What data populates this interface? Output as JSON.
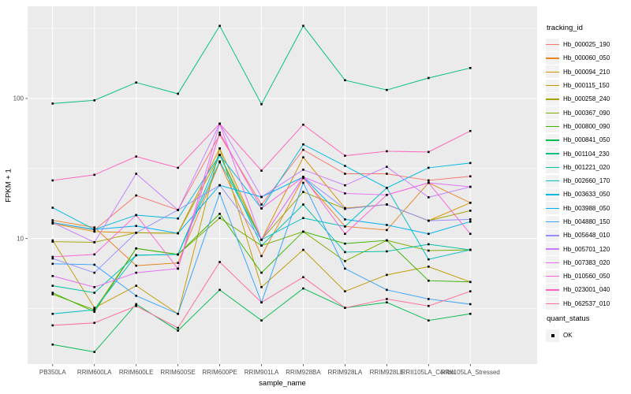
{
  "figure": {
    "background": "#FFFFFF",
    "panel_background": "#EBEBEB",
    "gridline_color": "#FFFFFF",
    "tick_text_color": "#4D4D4D",
    "tick_mark_color": "#333333",
    "marker_color": "#000000"
  },
  "chart_data": {
    "type": "line",
    "title": "",
    "xlabel": "sample_name",
    "ylabel": "FPKM + 1",
    "y_scale": "log10",
    "ylim": [
      1.27,
      455
    ],
    "y_major_ticks": [
      {
        "label": "100",
        "value": 100
      },
      {
        "label": "10",
        "value": 10
      }
    ],
    "y_minor_gridlines": [
      3.1623,
      31.623,
      316.23
    ],
    "grid": true,
    "legend_position": "right",
    "legend_title": "tracking_id",
    "marker": {
      "shape": "square",
      "color": "#000000",
      "size": 2.6
    },
    "categories": [
      "PB350LA",
      "RRIM600LA",
      "RRIM600LE",
      "RRIM600SE",
      "RRIM600PE",
      "RRIM901LA",
      "RRIM928BA",
      "RRIM928LA",
      "RRIM928LE",
      "RRII105LA_Control",
      "RRII105LA_Stressed"
    ],
    "series": [
      {
        "name": "Hb_000025_190",
        "color": "#F8766D",
        "values": [
          13,
          11.5,
          20.3,
          16,
          55,
          17.5,
          43,
          29,
          29,
          26,
          27.8
        ]
      },
      {
        "name": "Hb_000060_050",
        "color": "#E88526",
        "values": [
          13.5,
          12,
          6.4,
          6.7,
          35,
          7.5,
          27,
          12.2,
          11.5,
          25,
          18
        ]
      },
      {
        "name": "Hb_000094_210",
        "color": "#D89000",
        "values": [
          12.8,
          11.2,
          11,
          10.9,
          44,
          9.8,
          38,
          16.5,
          17.5,
          13.4,
          18
        ]
      },
      {
        "name": "Hb_000115_150",
        "color": "#C09B00",
        "values": [
          9.7,
          3.2,
          4.6,
          2.9,
          44,
          4.5,
          8.3,
          4.2,
          5.5,
          6.3,
          4.9
        ]
      },
      {
        "name": "Hb_000258_240",
        "color": "#A3A500",
        "values": [
          9.5,
          9.4,
          11,
          10.9,
          39.5,
          9.8,
          21.5,
          16.3,
          17.5,
          13.4,
          15.8
        ]
      },
      {
        "name": "Hb_000367_090",
        "color": "#7CAE00",
        "values": [
          4.0,
          3.1,
          8.5,
          7.7,
          14,
          8.9,
          11.2,
          6.9,
          9.7,
          8.2,
          8.3
        ]
      },
      {
        "name": "Hb_000800_090",
        "color": "#39B600",
        "values": [
          4.1,
          3.0,
          8.5,
          7.7,
          15,
          5.7,
          11.2,
          9.2,
          9.7,
          5.0,
          4.9
        ]
      },
      {
        "name": "Hb_000841_050",
        "color": "#00BB4E",
        "values": [
          1.75,
          1.55,
          3.4,
          2.2,
          4.3,
          2.6,
          4.4,
          3.2,
          3.5,
          2.6,
          2.9
        ]
      },
      {
        "name": "Hb_001104_230",
        "color": "#00BF7D",
        "values": [
          92,
          97,
          130,
          108,
          330,
          91,
          330,
          135,
          115,
          140,
          165
        ]
      },
      {
        "name": "Hb_001221_020",
        "color": "#00C1A3",
        "values": [
          4.6,
          4.1,
          7.6,
          7.7,
          39.5,
          8.9,
          17.5,
          8.0,
          8.1,
          9.1,
          8.3
        ]
      },
      {
        "name": "Hb_002660_170",
        "color": "#00BFC4",
        "values": [
          2.9,
          3.1,
          7.6,
          7.7,
          35.5,
          9.8,
          14,
          12.2,
          23,
          7.1,
          8.3
        ]
      },
      {
        "name": "Hb_003633_050",
        "color": "#00BAE0",
        "values": [
          16.6,
          11.6,
          14.7,
          13.9,
          39.5,
          16.4,
          47,
          33,
          23,
          32,
          34.6
        ]
      },
      {
        "name": "Hb_003988_050",
        "color": "#00B0F6",
        "values": [
          13,
          11.6,
          12.3,
          10.9,
          24,
          19.8,
          27.5,
          13.7,
          12.5,
          10.8,
          13.2
        ]
      },
      {
        "name": "Hb_004880_150",
        "color": "#35A2FF",
        "values": [
          6.6,
          6.5,
          3.9,
          2.9,
          21,
          3.5,
          25,
          6.1,
          4.3,
          3.7,
          3.4
        ]
      },
      {
        "name": "Hb_005648_010",
        "color": "#9590FF",
        "values": [
          7.2,
          5.7,
          11,
          16,
          24,
          9.8,
          27.5,
          16.3,
          17.5,
          13.4,
          13.7
        ]
      },
      {
        "name": "Hb_005701_120",
        "color": "#C77CFF",
        "values": [
          13,
          9.4,
          29,
          16,
          66,
          19.8,
          31,
          24,
          32.5,
          19.7,
          23.4
        ]
      },
      {
        "name": "Hb_007383_020",
        "color": "#E76BF3",
        "values": [
          5.4,
          4.5,
          5.7,
          6.1,
          66,
          9.8,
          27.5,
          21,
          20.5,
          25,
          23.4
        ]
      },
      {
        "name": "Hb_010560_050",
        "color": "#FA62DB",
        "values": [
          7.4,
          7.7,
          14.7,
          6.1,
          57,
          16.4,
          27.5,
          10.8,
          20.5,
          25,
          10.8
        ]
      },
      {
        "name": "Hb_023001_040",
        "color": "#FF62BC",
        "values": [
          26,
          28.5,
          38.5,
          32,
          66,
          30.5,
          65,
          39,
          42,
          41.5,
          58.6
        ]
      },
      {
        "name": "Hb_062537_010",
        "color": "#FF6A98",
        "values": [
          2.4,
          2.5,
          3.3,
          2.3,
          6.8,
          3.5,
          5.3,
          3.2,
          3.7,
          3.3,
          4.2
        ]
      }
    ],
    "quant_status": {
      "title": "quant_status",
      "items": [
        "OK"
      ]
    }
  }
}
